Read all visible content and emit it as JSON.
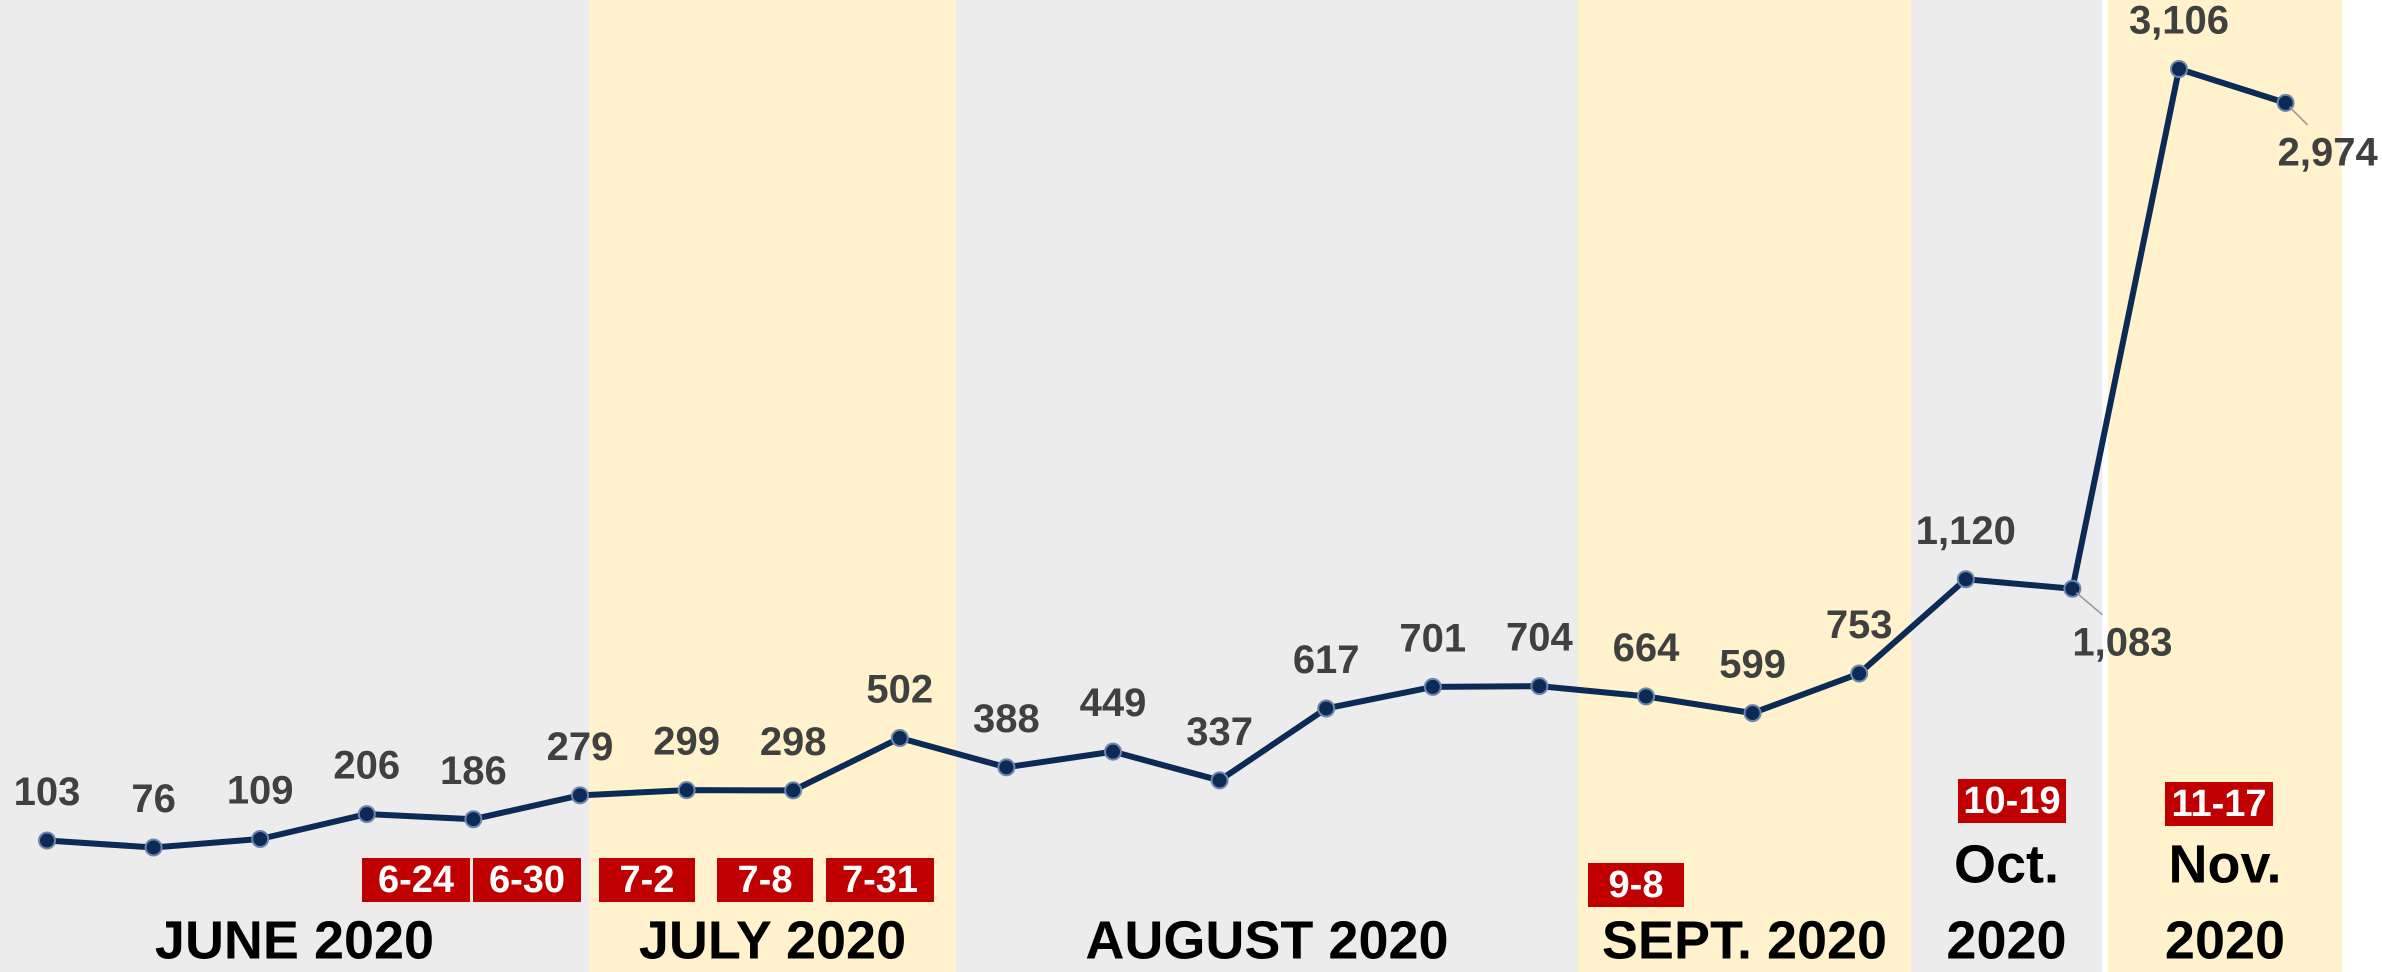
{
  "chart_data": {
    "type": "line",
    "categories": [
      null,
      null,
      null,
      null,
      null,
      null,
      null,
      null,
      null,
      null,
      null,
      null,
      null,
      null,
      null,
      null,
      null,
      null,
      null,
      null,
      null,
      null
    ],
    "series": [
      {
        "color": "#0b2a55",
        "values": [
          103,
          76,
          109,
          206,
          186,
          279,
          299,
          298,
          502,
          388,
          449,
          337,
          617,
          701,
          704,
          664,
          599,
          753,
          1120,
          1083,
          3106,
          2974
        ],
        "value_labels": [
          "103",
          "76",
          "109",
          "206",
          "186",
          "279",
          "299",
          "298",
          "502",
          "388",
          "449",
          "337",
          "617",
          "701",
          "704",
          "664",
          "599",
          "753",
          "1,120",
          "1,083",
          "3,106",
          "2,974"
        ]
      }
    ],
    "bands": [
      {
        "label": [
          "JUNE 2020"
        ],
        "color": "#ececec"
      },
      {
        "label": [
          "JULY 2020"
        ],
        "color": "#fff2cc"
      },
      {
        "label": [
          "AUGUST 2020"
        ],
        "color": "#ececec"
      },
      {
        "label": [
          "SEPT. 2020"
        ],
        "color": "#fff2cc"
      },
      {
        "label": [
          "Oct.",
          "2020"
        ],
        "color": "#ececec"
      },
      {
        "label": [
          "Nov.",
          "2020"
        ],
        "color": "#fff2cc"
      }
    ],
    "annotations": [
      "6-24",
      "6-30",
      "7-2",
      "7-8",
      "7-31",
      "9-8",
      "10-19",
      "11-17"
    ],
    "annotation_color": "#c00000"
  }
}
